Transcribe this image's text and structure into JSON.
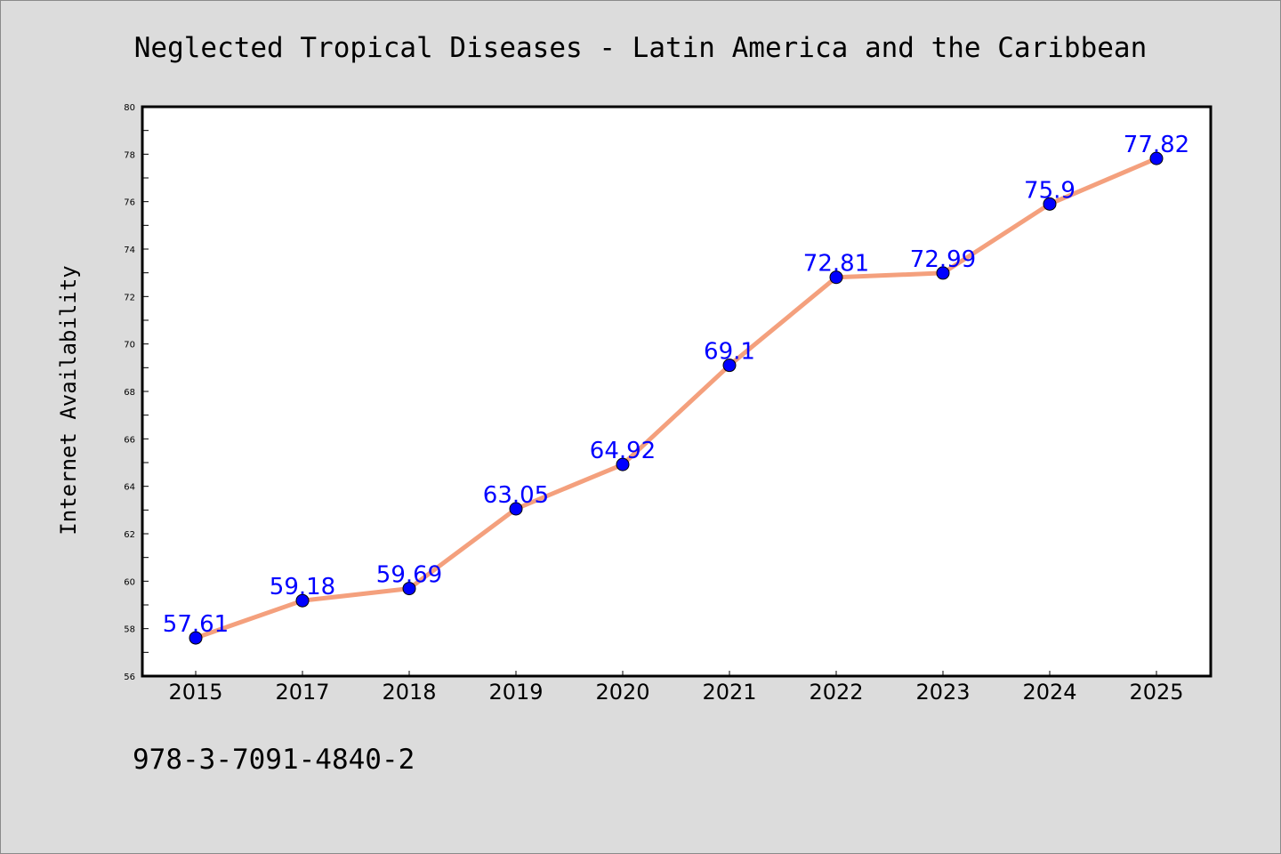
{
  "chart_data": {
    "type": "line",
    "title": "Neglected Tropical Diseases - Latin America and the Caribbean",
    "ylabel": "Internet Availability",
    "xlabel": "",
    "categories": [
      "2015",
      "2017",
      "2018",
      "2019",
      "2020",
      "2021",
      "2022",
      "2023",
      "2024",
      "2025"
    ],
    "series": [
      {
        "values": [
          57.61,
          59.18,
          59.69,
          63.05,
          64.92,
          69.1,
          72.81,
          72.99,
          75.9,
          77.82
        ],
        "labels": [
          "57.61",
          "59.18",
          "59.69",
          "63.05",
          "64.92",
          "69.1",
          "72.81",
          "72.99",
          "75.9",
          "77.82"
        ],
        "line_color": "#f4a07d",
        "marker_color": "#0000ff"
      }
    ],
    "ylim": [
      56,
      80
    ],
    "yticks": [
      "56",
      "58",
      "60",
      "62",
      "64",
      "66",
      "68",
      "70",
      "72",
      "74",
      "76",
      "78",
      "80"
    ],
    "grid": false,
    "label_color": "#0000ff"
  },
  "footer": {
    "isbn": "978-3-7091-4840-2"
  },
  "colors": {
    "background": "#dcdcdc",
    "plot_background": "#ffffff"
  }
}
